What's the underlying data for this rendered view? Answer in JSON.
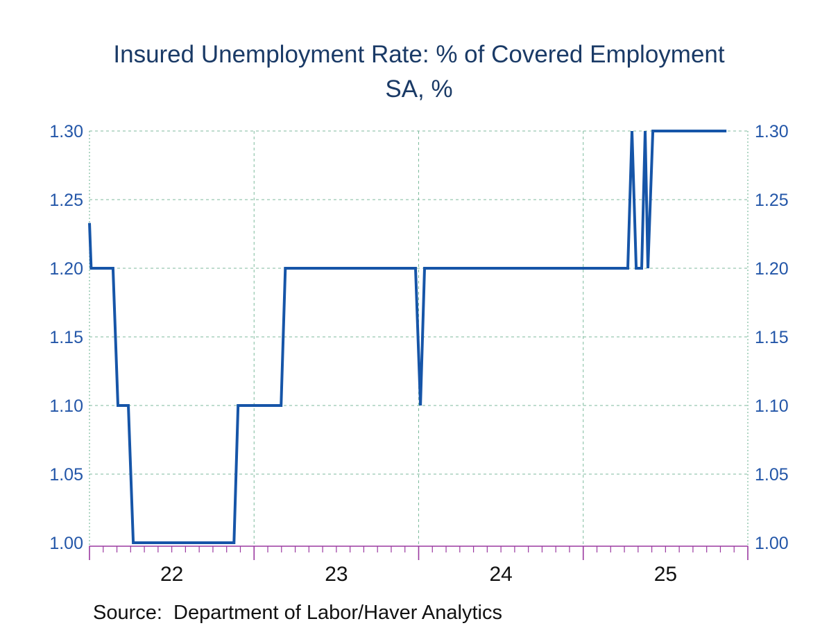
{
  "title": {
    "line1": "Insured Unemployment Rate: % of Covered Employment",
    "line2": "SA, %"
  },
  "source_text": "Source:  Department of Labor/Haver Analytics",
  "colors": {
    "title_navy": "#1A3A66",
    "y_label_blue": "#2356A8",
    "x_label_black": "#111111",
    "line_blue": "#1655A8",
    "axis_magenta": "#9A39A0",
    "grid_green": "#7CBA9C",
    "source_black": "#111111",
    "background": "#FFFFFF"
  },
  "chart_data": {
    "type": "line",
    "title": "Insured Unemployment Rate: % of Covered Employment",
    "subtitle": "SA, %",
    "source": "Source:  Department of Labor/Haver Analytics",
    "legend": "none",
    "grid": {
      "horizontal": "dashed",
      "vertical": "dashed at year starts",
      "plot_border_sides": "dotted"
    },
    "x_axis": {
      "min": 2022.0,
      "max": 2026.0,
      "tick_label_positions": [
        2022.5,
        2023.5,
        2024.5,
        2025.5
      ],
      "tick_labels": [
        "22",
        "23",
        "24",
        "25"
      ],
      "major_tick_positions": [
        2022.0,
        2023.0,
        2024.0,
        2025.0,
        2026.0
      ],
      "gridline_positions": [
        2023.0,
        2024.0,
        2025.0
      ],
      "minor_ticks": "monthly"
    },
    "y_axis": {
      "min": 1.0,
      "max": 1.3,
      "step": 0.05,
      "tick_values": [
        1.0,
        1.05,
        1.1,
        1.15,
        1.2,
        1.25,
        1.3
      ],
      "tick_labels": [
        "1.00",
        "1.05",
        "1.10",
        "1.15",
        "1.20",
        "1.25",
        "1.30"
      ],
      "label_sides": "both",
      "gridlines_at": [
        1.05,
        1.1,
        1.15,
        1.2,
        1.25,
        1.3
      ]
    },
    "series": [
      {
        "name": "Insured Unemployment Rate (SA, %)",
        "points": [
          [
            2022.0,
            1.233
          ],
          [
            2022.01,
            1.2
          ],
          [
            2022.143,
            1.2
          ],
          [
            2022.173,
            1.1
          ],
          [
            2022.236,
            1.1
          ],
          [
            2022.266,
            1.0
          ],
          [
            2022.878,
            1.0
          ],
          [
            2022.903,
            1.1
          ],
          [
            2023.164,
            1.1
          ],
          [
            2023.19,
            1.2
          ],
          [
            2023.981,
            1.2
          ],
          [
            2024.011,
            1.1
          ],
          [
            2024.036,
            1.2
          ],
          [
            2025.271,
            1.2
          ],
          [
            2025.296,
            1.3
          ],
          [
            2025.322,
            1.2
          ],
          [
            2025.355,
            1.2
          ],
          [
            2025.376,
            1.3
          ],
          [
            2025.393,
            1.2
          ],
          [
            2025.423,
            1.3
          ],
          [
            2025.87,
            1.3
          ]
        ]
      }
    ]
  }
}
